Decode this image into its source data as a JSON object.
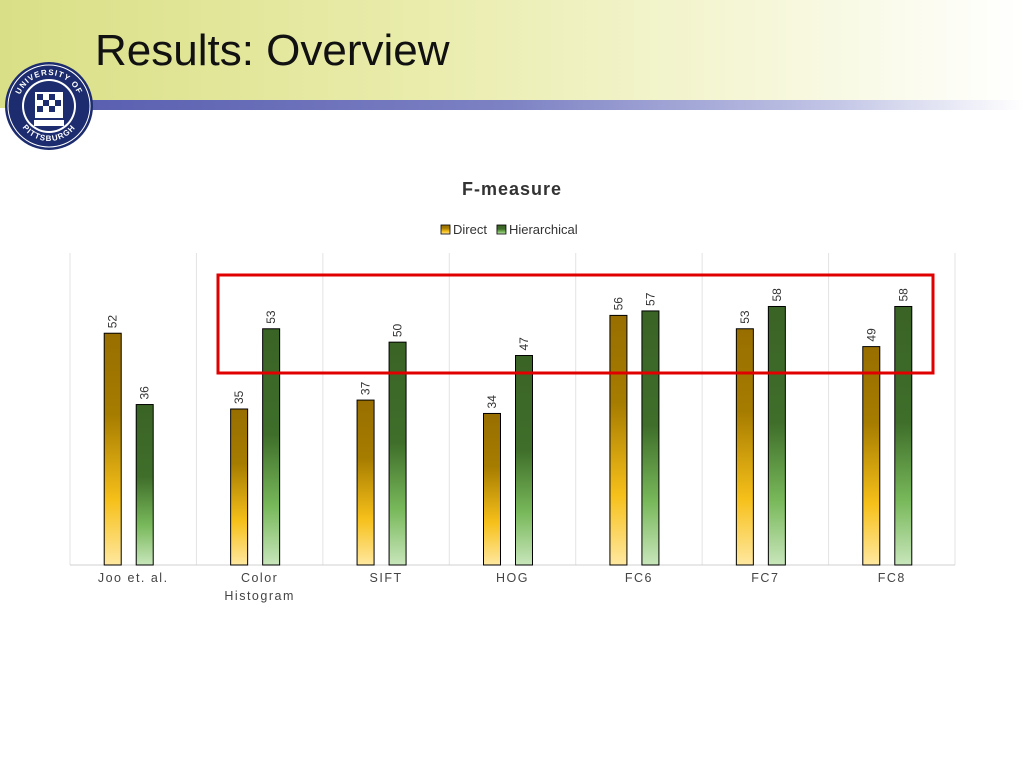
{
  "slide": {
    "title": "Results: Overview",
    "logo": "university-of-pittsburgh-seal",
    "logo_text_top": "UNIVERSITY OF",
    "logo_text_bottom": "PITTSBURGH"
  },
  "chart_data": {
    "type": "bar",
    "title": "F-measure",
    "categories": [
      "Joo et. al.",
      "Color Histogram",
      "SIFT",
      "HOG",
      "FC6",
      "FC7",
      "FC8"
    ],
    "series": [
      {
        "name": "Direct",
        "values": [
          52,
          35,
          37,
          34,
          56,
          53,
          49
        ],
        "color": "#a07800"
      },
      {
        "name": "Hierarchical",
        "values": [
          36,
          53,
          50,
          47,
          57,
          58,
          58
        ],
        "color": "#3f6a2b"
      }
    ],
    "xlabel": "",
    "ylabel": "",
    "ylim": [
      0,
      70
    ],
    "grid": "vertical",
    "legend": "top-center",
    "highlight_color": "#e00000",
    "data_labels": true
  }
}
